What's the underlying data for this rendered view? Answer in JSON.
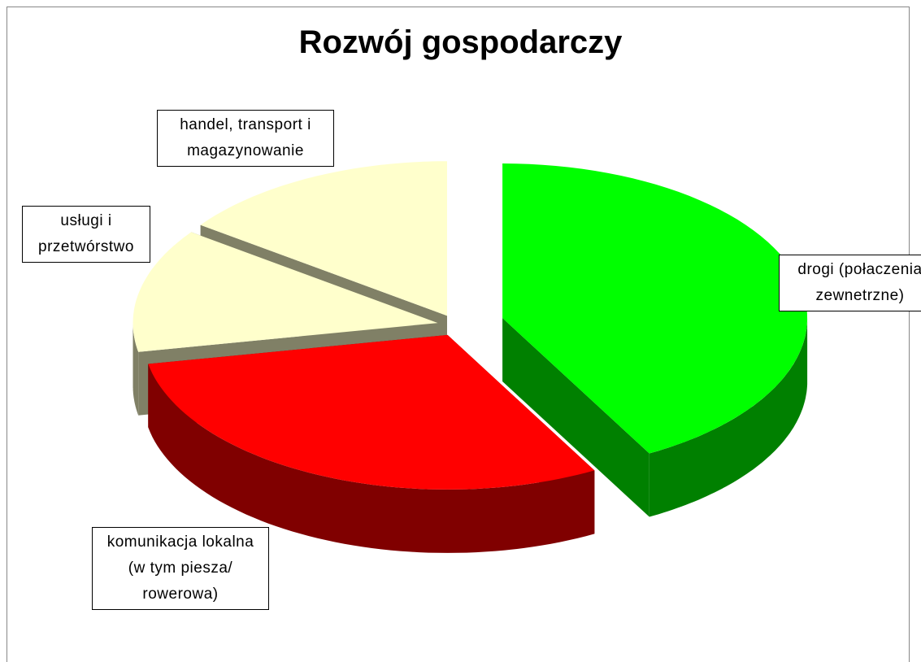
{
  "chart_data": {
    "type": "pie3d",
    "title": "Rozwój gospodarczy",
    "categories": [
      "drogi (połaczenia zewnetrzne)",
      "komunikacja lokalna (w tym piesza/ rowerowa)",
      "usługi i przetwórstwo",
      "handel, transport i magazynowanie"
    ],
    "values": [
      42,
      30,
      13,
      15
    ],
    "colors": [
      "#00ff00",
      "#ff0000",
      "#ffffcc",
      "#ffffcc"
    ],
    "side_colors": [
      "#008000",
      "#800000",
      "#808066",
      "#808066"
    ]
  }
}
